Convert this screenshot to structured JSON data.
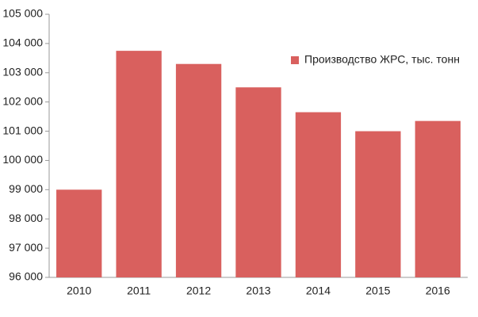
{
  "chart_data": {
    "type": "bar",
    "categories": [
      "2010",
      "2011",
      "2012",
      "2013",
      "2014",
      "2015",
      "2016"
    ],
    "series": [
      {
        "name": "Производство ЖРС, тыс. тонн",
        "color": "#d9605e",
        "values": [
          99000,
          103750,
          103300,
          102500,
          101650,
          101000,
          101350
        ]
      }
    ],
    "ylim": [
      96000,
      105000
    ],
    "yticks": [
      {
        "value": 96000,
        "label": "96 000"
      },
      {
        "value": 97000,
        "label": "97 000"
      },
      {
        "value": 98000,
        "label": "98 000"
      },
      {
        "value": 99000,
        "label": "99 000"
      },
      {
        "value": 100000,
        "label": "100 000"
      },
      {
        "value": 101000,
        "label": "101 000"
      },
      {
        "value": 102000,
        "label": "102 000"
      },
      {
        "value": 103000,
        "label": "103 000"
      },
      {
        "value": 104000,
        "label": "104 000"
      },
      {
        "value": 105000,
        "label": "105 000"
      }
    ],
    "grid": false,
    "legend": "upper right"
  }
}
